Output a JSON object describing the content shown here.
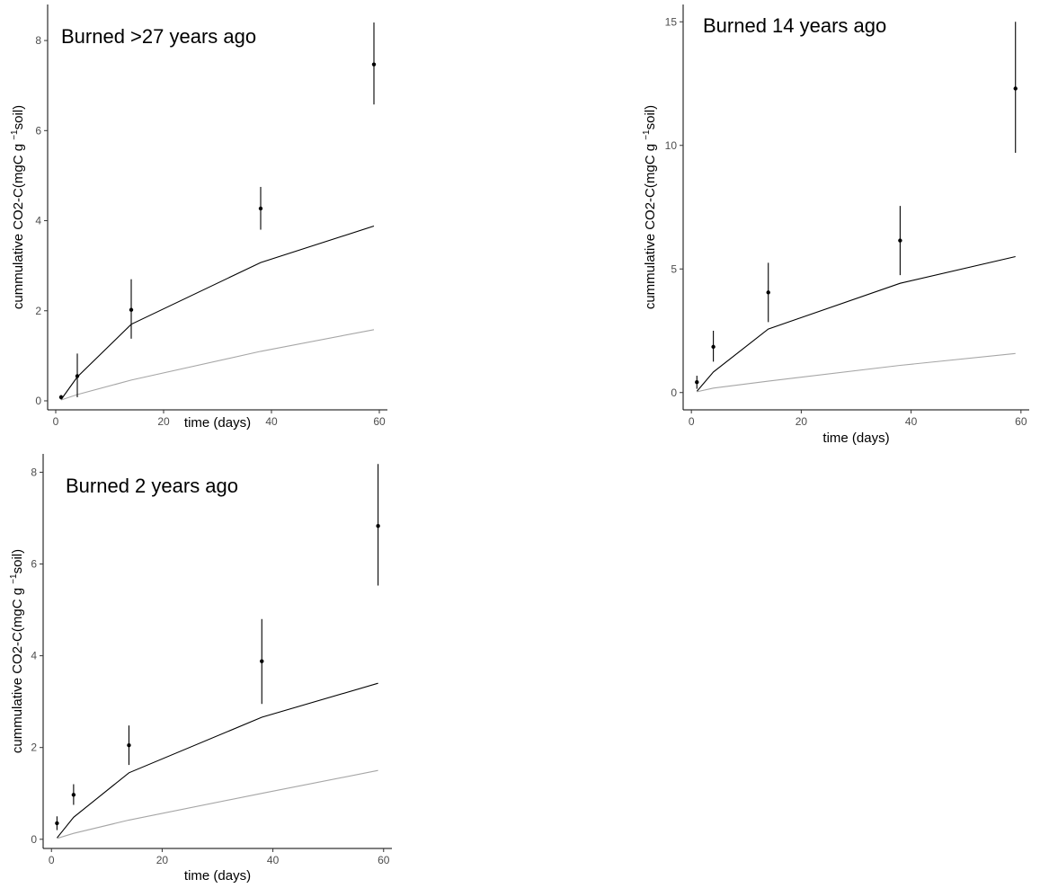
{
  "chart_data": [
    {
      "type": "line",
      "title": "Burned >27 years ago",
      "xlabel": "time (days)",
      "ylabel": "cummulative CO2-C(mgC g",
      "ylabel_sup": "−1",
      "ylabel_end": "soil)",
      "xlim": [
        -1.5,
        61.5
      ],
      "ylim": [
        -0.2,
        8.8
      ],
      "xticks": [
        0,
        20,
        40,
        60
      ],
      "yticks": [
        0,
        2,
        4,
        6,
        8
      ],
      "grid": false,
      "points": {
        "x": [
          1,
          4,
          14,
          38,
          59
        ],
        "y": [
          0.08,
          0.55,
          2.02,
          4.27,
          7.47
        ],
        "err_low": [
          0.03,
          0.08,
          1.38,
          3.8,
          6.58
        ],
        "err_high": [
          0.13,
          1.05,
          2.7,
          4.75,
          8.4
        ]
      },
      "series": [
        {
          "x": [
            1,
            4,
            14,
            38,
            59
          ],
          "y": [
            0.03,
            0.53,
            1.7,
            3.07,
            3.88
          ],
          "color": "#000000"
        },
        {
          "x": [
            1,
            4,
            14,
            38,
            59
          ],
          "y": [
            0.02,
            0.14,
            0.46,
            1.1,
            1.58
          ],
          "color": "#a6a6a6"
        }
      ]
    },
    {
      "type": "line",
      "title": "Burned 14 years ago",
      "xlabel": "time (days)",
      "ylabel": "cummulative CO2-C(mgC g",
      "ylabel_sup": "−1",
      "ylabel_end": "soil)",
      "xlim": [
        -1.5,
        61.5
      ],
      "ylim": [
        -0.7,
        15.7
      ],
      "xticks": [
        0,
        20,
        40,
        60
      ],
      "yticks": [
        0,
        5,
        10,
        15
      ],
      "grid": false,
      "points": {
        "x": [
          1,
          4,
          14,
          38,
          59
        ],
        "y": [
          0.42,
          1.85,
          4.05,
          6.15,
          12.3
        ],
        "err_low": [
          0.15,
          1.25,
          2.85,
          4.75,
          9.7
        ],
        "err_high": [
          0.68,
          2.5,
          5.25,
          7.55,
          15.0
        ]
      },
      "series": [
        {
          "x": [
            1,
            4,
            14,
            38,
            59
          ],
          "y": [
            0.05,
            0.83,
            2.57,
            4.42,
            5.5
          ],
          "color": "#000000"
        },
        {
          "x": [
            1,
            4,
            14,
            38,
            59
          ],
          "y": [
            0.03,
            0.18,
            0.46,
            1.1,
            1.58
          ],
          "color": "#a6a6a6"
        }
      ]
    },
    {
      "type": "line",
      "title": "Burned 2 years ago",
      "xlabel": "time (days)",
      "ylabel": "cummulative CO2-C(mgC g",
      "ylabel_sup": "−1",
      "ylabel_end": "soil)",
      "xlim": [
        -1.5,
        61.5
      ],
      "ylim": [
        -0.2,
        8.4
      ],
      "xticks": [
        0,
        20,
        40,
        60
      ],
      "yticks": [
        0,
        2,
        4,
        6,
        8
      ],
      "grid": false,
      "points": {
        "x": [
          1,
          4,
          14,
          38,
          59
        ],
        "y": [
          0.35,
          0.97,
          2.05,
          3.88,
          6.83
        ],
        "err_low": [
          0.2,
          0.75,
          1.62,
          2.95,
          5.53
        ],
        "err_high": [
          0.5,
          1.2,
          2.48,
          4.8,
          8.18
        ]
      },
      "series": [
        {
          "x": [
            1,
            4,
            14,
            38,
            59
          ],
          "y": [
            0.03,
            0.48,
            1.45,
            2.66,
            3.4
          ],
          "color": "#000000"
        },
        {
          "x": [
            1,
            4,
            14,
            38,
            59
          ],
          "y": [
            0.02,
            0.13,
            0.42,
            1.0,
            1.5
          ],
          "color": "#a6a6a6"
        }
      ]
    }
  ]
}
